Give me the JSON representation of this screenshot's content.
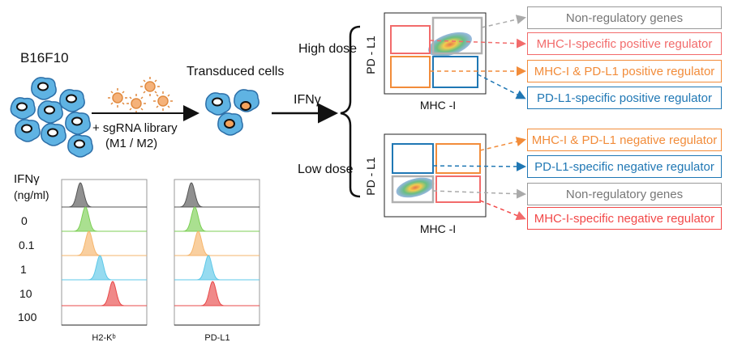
{
  "workflow": {
    "cell_line": "B16F10",
    "library_line1": "+ sgRNA library",
    "library_line2": "(M1 / M2)",
    "transduced": "Transduced cells",
    "stimulus": "IFNγ",
    "high_dose": "High dose",
    "low_dose": "Low dose"
  },
  "plots": {
    "y_axis": "PD - L1",
    "x_axis": "MHC -I"
  },
  "categories_high": [
    {
      "label": "Non-regulatory genes",
      "color": "#999999"
    },
    {
      "label": "MHC-I-specific positive regulator",
      "color": "#f26b6b"
    },
    {
      "label": "MHC-I & PD-L1 positive regulator",
      "color": "#f28c3a"
    },
    {
      "label": "PD-L1-specific positive regulator",
      "color": "#1f77b4"
    }
  ],
  "categories_low": [
    {
      "label": "MHC-I & PD-L1 negative regulator",
      "color": "#f28c3a"
    },
    {
      "label": "PD-L1-specific negative regulator",
      "color": "#1f77b4"
    },
    {
      "label": "Non-regulatory genes",
      "color": "#999999"
    },
    {
      "label": "MHC-I-specific negative regulator",
      "color": "#f24848"
    }
  ],
  "histograms": {
    "title_line1": "IFNγ",
    "title_line2": "(ng/ml)",
    "doses": [
      "0",
      "0.1",
      "1",
      "10",
      "100"
    ],
    "colors": [
      "#555555",
      "#7ccf55",
      "#f6b66c",
      "#5ec8e8",
      "#e84a4a"
    ],
    "left_xlabel": "H2-Kᵇ",
    "right_xlabel": "PD-L1",
    "left_peaks": [
      0.22,
      0.28,
      0.32,
      0.45,
      0.6
    ],
    "right_peaks": [
      0.2,
      0.24,
      0.28,
      0.4,
      0.45
    ]
  }
}
